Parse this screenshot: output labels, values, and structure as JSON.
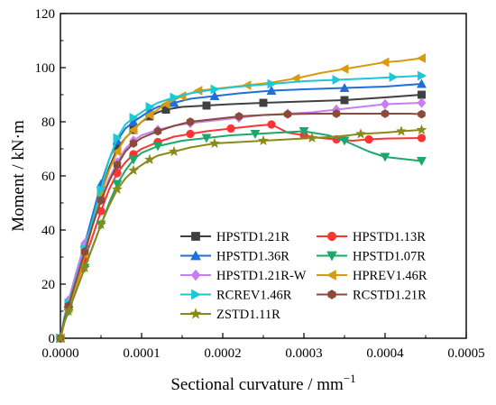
{
  "chart_data": {
    "type": "line",
    "xlabel": "Sectional curvature / mm",
    "xlabel_sup": "−1",
    "ylabel": "Moment / kN·m",
    "xlim": [
      0,
      0.0005
    ],
    "ylim": [
      0,
      120
    ],
    "x_ticks": [
      0,
      0.0001,
      0.0002,
      0.0003,
      0.0004,
      0.0005
    ],
    "x_tick_labels": [
      "0.0000",
      "0.0001",
      "0.0002",
      "0.0003",
      "0.0004",
      "0.0005"
    ],
    "y_ticks": [
      0,
      20,
      40,
      60,
      80,
      100,
      120
    ],
    "y_tick_labels": [
      "0",
      "20",
      "40",
      "60",
      "80",
      "100",
      "120"
    ],
    "grid": false,
    "legend_position": "lower-center",
    "series": [
      {
        "name": "HPSTD1.21R",
        "color": "#404040",
        "marker": "square",
        "x": [
          0,
          5e-06,
          1e-05,
          2e-05,
          3e-05,
          4e-05,
          5e-05,
          6e-05,
          7e-05,
          8e-05,
          9e-05,
          0.0001,
          0.00011,
          0.00012,
          0.00013,
          0.00015,
          0.00018,
          0.00021,
          0.00025,
          0.0003,
          0.00035,
          0.0004,
          0.000445
        ],
        "y": [
          0,
          7,
          12,
          22,
          32,
          43,
          53,
          63,
          70,
          74,
          77,
          80,
          82,
          83.5,
          84.5,
          85.5,
          86,
          86.5,
          87,
          87.5,
          88,
          89,
          90
        ]
      },
      {
        "name": "HPSTD1.13R",
        "color": "#ff3333",
        "marker": "circle",
        "x": [
          0,
          5e-06,
          1e-05,
          2e-05,
          3e-05,
          4e-05,
          5e-05,
          6e-05,
          7e-05,
          8e-05,
          9e-05,
          0.0001,
          0.00012,
          0.00014,
          0.00016,
          0.00018,
          0.00021,
          0.00024,
          0.00026,
          0.00028,
          0.0003,
          0.00032,
          0.00034,
          0.00036,
          0.00038,
          0.0004,
          0.000445
        ],
        "y": [
          0,
          6,
          11,
          20,
          29,
          38,
          47,
          55,
          61,
          65,
          68,
          70,
          72.5,
          74.5,
          75.5,
          76.5,
          77.5,
          78.5,
          79,
          76,
          75,
          74,
          73.5,
          73,
          73.5,
          73.8,
          74
        ]
      },
      {
        "name": "HPSTD1.36R",
        "color": "#1f6fd6",
        "marker": "triangle-up",
        "x": [
          0,
          5e-06,
          1e-05,
          2e-05,
          3e-05,
          4e-05,
          5e-05,
          6e-05,
          7e-05,
          8e-05,
          9e-05,
          0.0001,
          0.00011,
          0.00012,
          0.00014,
          0.00016,
          0.00019,
          0.00022,
          0.00026,
          0.0003,
          0.00035,
          0.0004,
          0.000445
        ],
        "y": [
          0,
          8,
          13,
          24,
          35,
          46,
          57,
          66,
          73,
          77.5,
          80,
          82,
          84,
          85.5,
          87,
          88.5,
          89.5,
          90.5,
          91.5,
          92,
          92.5,
          93,
          94
        ]
      },
      {
        "name": "HPSTD1.07R",
        "color": "#1ba86b",
        "marker": "triangle-down",
        "x": [
          0,
          5e-06,
          1e-05,
          2e-05,
          3e-05,
          4e-05,
          5e-05,
          6e-05,
          7e-05,
          8e-05,
          9e-05,
          0.0001,
          0.00012,
          0.00015,
          0.00018,
          0.00021,
          0.00024,
          0.00027,
          0.0003,
          0.00033,
          0.00035,
          0.00038,
          0.0004,
          0.000445
        ],
        "y": [
          0,
          6,
          10,
          18,
          26,
          34,
          42,
          50,
          57,
          62,
          66,
          68.5,
          71,
          73,
          74,
          75,
          75.5,
          76,
          76.5,
          75,
          73,
          69,
          67,
          65.5
        ]
      },
      {
        "name": "HPSTD1.21R-W",
        "color": "#c77ef0",
        "marker": "diamond",
        "x": [
          0,
          5e-06,
          1e-05,
          2e-05,
          3e-05,
          4e-05,
          5e-05,
          6e-05,
          7e-05,
          8e-05,
          9e-05,
          0.0001,
          0.00012,
          0.00014,
          0.00016,
          0.00019,
          0.00022,
          0.00025,
          0.00028,
          0.00031,
          0.00034,
          0.00037,
          0.0004,
          0.000445
        ],
        "y": [
          0,
          8,
          14,
          25,
          35,
          43,
          51,
          59,
          65,
          70,
          73,
          75,
          77,
          78.5,
          79.5,
          80.5,
          81.5,
          82.5,
          83,
          83.5,
          84.5,
          85.5,
          86.5,
          87
        ]
      },
      {
        "name": "HPREV1.46R",
        "color": "#d99a10",
        "marker": "triangle-left",
        "x": [
          0,
          5e-06,
          1e-05,
          2e-05,
          3e-05,
          4e-05,
          5e-05,
          6e-05,
          7e-05,
          8e-05,
          9e-05,
          0.0001,
          0.00011,
          0.00012,
          0.00013,
          0.00014,
          0.00015,
          0.00016,
          0.00017,
          0.0002,
          0.00023,
          0.00026,
          0.00029,
          0.00032,
          0.00035,
          0.00038,
          0.0004,
          0.00042,
          0.000445
        ],
        "y": [
          0,
          6,
          11,
          20,
          31,
          42,
          53,
          62,
          69,
          74,
          77,
          80,
          82.5,
          84.5,
          86.5,
          88,
          89.5,
          90.5,
          91.5,
          92.5,
          93.5,
          94.5,
          96,
          98,
          99.5,
          101,
          102,
          102.5,
          103.5
        ]
      },
      {
        "name": "RCREV1.46R",
        "color": "#1cc8d6",
        "marker": "triangle-right",
        "x": [
          0,
          5e-06,
          1e-05,
          2e-05,
          3e-05,
          4e-05,
          5e-05,
          6e-05,
          7e-05,
          8e-05,
          9e-05,
          0.0001,
          0.00011,
          0.00012,
          0.00014,
          0.00016,
          0.00019,
          0.00022,
          0.00026,
          0.0003,
          0.00034,
          0.00038,
          0.00041,
          0.000445
        ],
        "y": [
          0,
          8,
          13,
          23,
          33,
          44,
          55,
          66,
          74,
          79,
          81.5,
          83.5,
          85.5,
          87,
          89,
          90.5,
          92,
          93,
          94,
          95,
          95.5,
          96,
          96.5,
          97
        ]
      },
      {
        "name": "RCSTD1.21R",
        "color": "#8b4a3c",
        "marker": "hexagon",
        "x": [
          0,
          5e-06,
          1e-05,
          2e-05,
          3e-05,
          4e-05,
          5e-05,
          6e-05,
          7e-05,
          8e-05,
          9e-05,
          0.0001,
          0.00012,
          0.00014,
          0.00016,
          0.00019,
          0.00022,
          0.00025,
          0.00028,
          0.00031,
          0.00034,
          0.00037,
          0.0004,
          0.00043,
          0.000445
        ],
        "y": [
          0,
          7,
          12,
          22,
          32,
          42,
          51,
          58,
          64,
          69,
          72,
          74,
          76.5,
          78.5,
          80,
          81,
          82,
          82.5,
          82.8,
          83,
          83,
          83,
          83,
          83,
          82.8
        ]
      },
      {
        "name": "ZSTD1.11R",
        "color": "#8a8a1a",
        "marker": "star",
        "x": [
          0,
          5e-06,
          1e-05,
          2e-05,
          3e-05,
          4e-05,
          5e-05,
          6e-05,
          7e-05,
          8e-05,
          9e-05,
          0.0001,
          0.00011,
          0.00012,
          0.00014,
          0.00016,
          0.00019,
          0.00022,
          0.00025,
          0.00028,
          0.00031,
          0.00034,
          0.00037,
          0.0004,
          0.00042,
          0.000445
        ],
        "y": [
          0,
          6,
          10,
          18,
          26,
          34,
          42,
          49,
          55,
          59,
          62,
          64,
          66,
          67.5,
          69,
          70.5,
          72,
          72.5,
          73,
          73.5,
          74,
          74.5,
          75.5,
          76,
          76.5,
          77
        ]
      }
    ]
  }
}
